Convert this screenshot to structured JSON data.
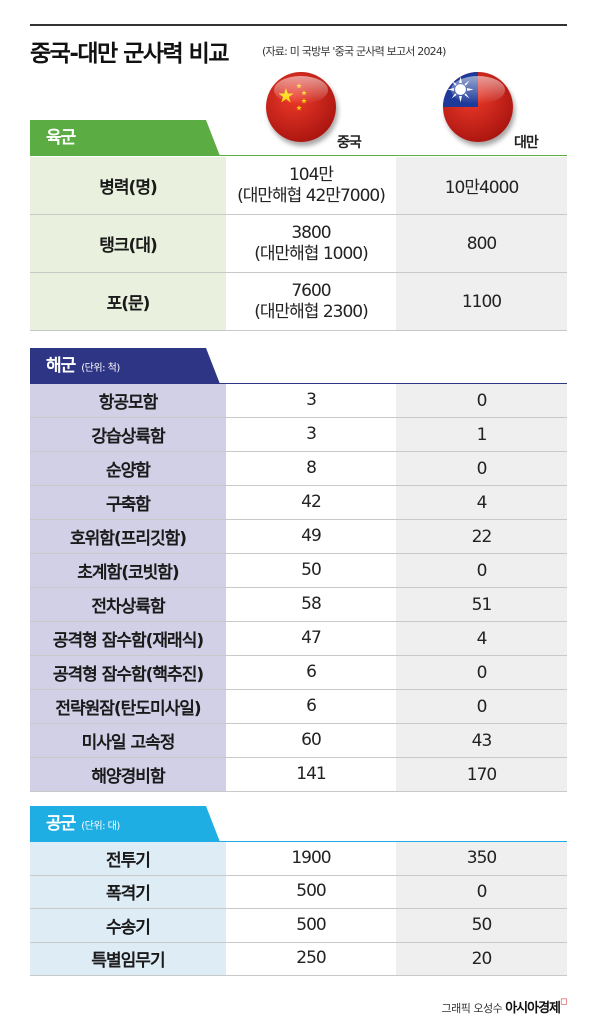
{
  "title": "중국-대만 군사력 비교",
  "source": "(자료: 미 국방부 '중국 군사력 보고서 2024)",
  "countries": {
    "china": "중국",
    "taiwan": "대만"
  },
  "colors": {
    "army": "#5aac43",
    "army_bg": "#e9f1de",
    "navy": "#2d3584",
    "navy_bg": "#d2d0e7",
    "air": "#1eaee3",
    "air_bg": "#ddecf5"
  },
  "army": {
    "label": "육군",
    "rows": [
      {
        "name": "병력(명)",
        "china": "104만",
        "china_note": "(대만해협 42만7000)",
        "taiwan": "10만4000"
      },
      {
        "name": "탱크(대)",
        "china": "3800",
        "china_note": "(대만해협 1000)",
        "taiwan": "800"
      },
      {
        "name": "포(문)",
        "china": "7600",
        "china_note": "(대만해협 2300)",
        "taiwan": "1100"
      }
    ]
  },
  "navy": {
    "label": "해군",
    "unit": "(단위: 척)",
    "rows": [
      {
        "name": "항공모함",
        "china": "3",
        "taiwan": "0"
      },
      {
        "name": "강습상륙함",
        "china": "3",
        "taiwan": "1"
      },
      {
        "name": "순양함",
        "china": "8",
        "taiwan": "0"
      },
      {
        "name": "구축함",
        "china": "42",
        "taiwan": "4"
      },
      {
        "name": "호위함(프리깃함)",
        "china": "49",
        "taiwan": "22"
      },
      {
        "name": "초계함(코빗함)",
        "china": "50",
        "taiwan": "0"
      },
      {
        "name": "전차상륙함",
        "china": "58",
        "taiwan": "51"
      },
      {
        "name": "공격형 잠수함(재래식)",
        "china": "47",
        "taiwan": "4"
      },
      {
        "name": "공격형 잠수함(핵추진)",
        "china": "6",
        "taiwan": "0"
      },
      {
        "name": "전략원잠(탄도미사일)",
        "china": "6",
        "taiwan": "0"
      },
      {
        "name": "미사일 고속정",
        "china": "60",
        "taiwan": "43"
      },
      {
        "name": "해양경비함",
        "china": "141",
        "taiwan": "170"
      }
    ]
  },
  "air": {
    "label": "공군",
    "unit": "(단위: 대)",
    "rows": [
      {
        "name": "전투기",
        "china": "1900",
        "taiwan": "350"
      },
      {
        "name": "폭격기",
        "china": "500",
        "taiwan": "0"
      },
      {
        "name": "수송기",
        "china": "500",
        "taiwan": "50"
      },
      {
        "name": "특별임무기",
        "china": "250",
        "taiwan": "20"
      }
    ]
  },
  "credit": {
    "prefix": "그래픽 오성수",
    "brand": "아시아경제"
  }
}
